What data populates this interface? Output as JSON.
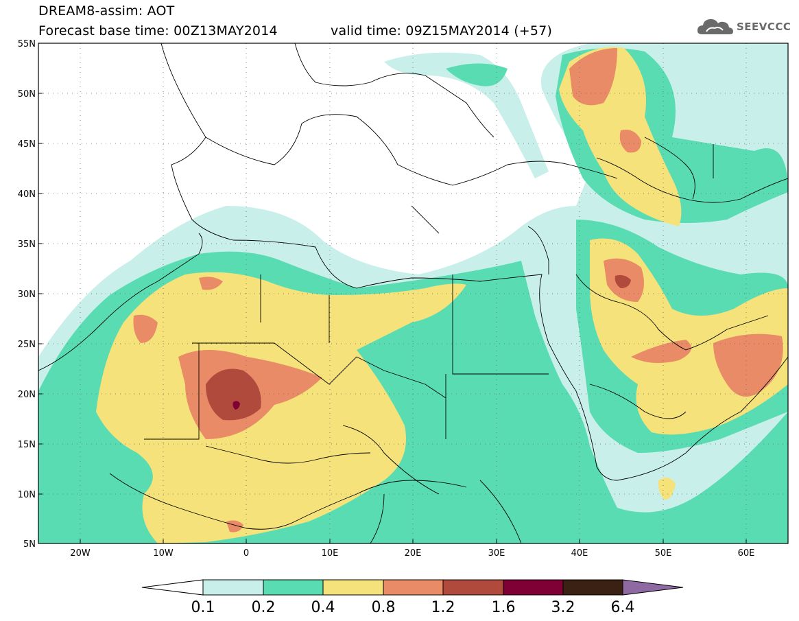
{
  "header": {
    "title_line1": "DREAM8-assim: AOT",
    "title_line2": "Forecast base time: 00Z13MAY2014",
    "title_line3": "valid time: 09Z15MAY2014 (+57)"
  },
  "logo": {
    "text": "SEEVCCC",
    "icon": "cloud-icon",
    "color": "#6a6a6a"
  },
  "axes": {
    "lat_labels": [
      "55N",
      "50N",
      "45N",
      "40N",
      "35N",
      "30N",
      "25N",
      "20N",
      "15N",
      "10N",
      "5N"
    ],
    "lon_labels": [
      "20W",
      "10W",
      "0",
      "10E",
      "20E",
      "30E",
      "40E",
      "50E",
      "60E"
    ],
    "lon_range": [
      -25,
      65
    ],
    "lat_range": [
      5,
      55
    ]
  },
  "colorbar": {
    "labels": [
      "0.1",
      "0.2",
      "0.4",
      "0.8",
      "1.2",
      "1.6",
      "3.2",
      "6.4"
    ],
    "colors": [
      "#c8efea",
      "#5adcb3",
      "#f5e27a",
      "#e88b66",
      "#b04a3c",
      "#7f0034",
      "#3b2114",
      "#8f6aa2"
    ]
  }
}
